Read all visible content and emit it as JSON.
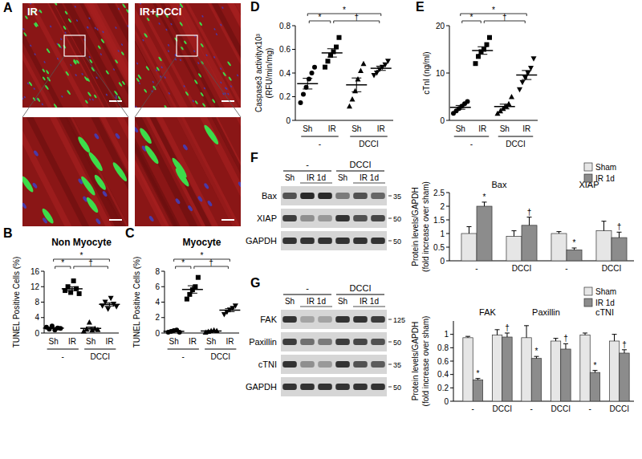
{
  "images": {
    "panel": "A",
    "labels": [
      "IR",
      "IR+DCCI"
    ]
  },
  "blots": [
    {
      "panel": "F",
      "group_labels": [
        "-",
        "DCCI"
      ],
      "lane_labels": [
        "Sh",
        "IR 1d"
      ],
      "rows": [
        {
          "label": "Bax",
          "mw": 35,
          "bands": [
            0.7,
            0.9,
            0.9,
            0.5,
            0.7,
            0.6
          ]
        },
        {
          "label": "XIAP",
          "mw": 50,
          "bands": [
            0.8,
            0.4,
            0.35,
            0.85,
            0.7,
            0.75
          ]
        },
        {
          "label": "GAPDH",
          "mw": 50,
          "bands": [
            0.85,
            0.85,
            0.85,
            0.85,
            0.85,
            0.85
          ]
        }
      ]
    },
    {
      "panel": "G",
      "group_labels": [
        "-",
        "DCCI"
      ],
      "lane_labels": [
        "Sh",
        "IR 1d"
      ],
      "rows": [
        {
          "label": "FAK",
          "mw": 125,
          "bands": [
            0.85,
            0.3,
            0.3,
            0.85,
            0.85,
            0.8
          ]
        },
        {
          "label": "Paxillin",
          "mw": 50,
          "bands": [
            0.8,
            0.55,
            0.5,
            0.8,
            0.75,
            0.7
          ]
        },
        {
          "label": "cTNI",
          "mw": 35,
          "bands": [
            0.85,
            0.4,
            0.35,
            0.85,
            0.7,
            0.65
          ]
        },
        {
          "label": "GAPDH",
          "mw": 50,
          "bands": [
            0.85,
            0.85,
            0.85,
            0.85,
            0.85,
            0.85
          ]
        }
      ]
    }
  ],
  "chart_data": [
    {
      "type": "dot",
      "panel": "B",
      "title": "Non Myocyte",
      "ylabel": [
        "TUNEL Positive Cells (%)"
      ],
      "categories": [
        "Sh",
        "IR",
        "Sh",
        "IR"
      ],
      "group_labels": [
        "-",
        "DCCI"
      ],
      "marker": [
        "circle",
        "square",
        "triangle",
        "triangle-down"
      ],
      "points": [
        [
          1.5,
          1.0,
          1.8,
          0.8,
          1.3,
          1.2
        ],
        [
          11.0,
          12.0,
          10.5,
          13.5,
          11.5,
          10.2
        ],
        [
          0.5,
          1.0,
          2.8,
          0.8,
          1.2,
          0.9
        ],
        [
          7.0,
          8.0,
          6.2,
          9.0,
          7.5,
          6.8
        ]
      ],
      "values": [
        1.27,
        11.45,
        1.2,
        7.42
      ],
      "errors": [
        0.15,
        0.5,
        0.35,
        0.42
      ],
      "ylim": [
        0,
        16
      ],
      "yticks": [
        0,
        4,
        8,
        12,
        16
      ],
      "comparisons": [
        {
          "from": 0,
          "to": 1,
          "label": "*"
        },
        {
          "from": 0,
          "to": 3,
          "label": "*"
        },
        {
          "from": 1,
          "to": 3,
          "label": "†"
        }
      ]
    },
    {
      "type": "dot",
      "panel": "C",
      "title": "Myocyte",
      "ylabel": [
        "TUNEL Positive Cells (%)"
      ],
      "categories": [
        "Sh",
        "IR",
        "Sh",
        "IR"
      ],
      "group_labels": [
        "-",
        "DCCI"
      ],
      "marker": [
        "circle",
        "square",
        "triangle",
        "triangle-down"
      ],
      "points": [
        [
          0.1,
          0.2,
          0.3,
          0.4,
          0.1
        ],
        [
          4.4,
          5.0,
          5.6,
          6.0,
          7.2
        ],
        [
          0.1,
          0.2,
          0.3,
          0.4,
          0.3
        ],
        [
          2.4,
          2.7,
          3.0,
          3.2,
          3.5
        ]
      ],
      "values": [
        0.22,
        5.64,
        0.26,
        2.96
      ],
      "errors": [
        0.06,
        0.48,
        0.05,
        0.19
      ],
      "ylim": [
        0,
        8
      ],
      "yticks": [
        0,
        2,
        4,
        6,
        8
      ],
      "comparisons": [
        {
          "from": 0,
          "to": 1,
          "label": "*"
        },
        {
          "from": 0,
          "to": 3,
          "label": "*"
        },
        {
          "from": 1,
          "to": 3,
          "label": "†"
        }
      ]
    },
    {
      "type": "dot",
      "panel": "D",
      "ylabel": [
        "Caspase3 activityx10³",
        "(RFU/min/mg)"
      ],
      "categories": [
        "Sh",
        "IR",
        "Sh",
        "IR"
      ],
      "group_labels": [
        "-",
        "DCCI"
      ],
      "marker": [
        "circle",
        "square",
        "triangle",
        "triangle-down"
      ],
      "points": [
        [
          0.15,
          0.22,
          0.28,
          0.35,
          0.4,
          0.45
        ],
        [
          0.45,
          0.5,
          0.55,
          0.58,
          0.62,
          0.7
        ],
        [
          0.12,
          0.18,
          0.25,
          0.35,
          0.42,
          0.48
        ],
        [
          0.38,
          0.4,
          0.43,
          0.45,
          0.47,
          0.5
        ]
      ],
      "values": [
        0.31,
        0.57,
        0.3,
        0.44
      ],
      "errors": [
        0.045,
        0.035,
        0.058,
        0.018
      ],
      "ylim": [
        0,
        0.8
      ],
      "yticks": [
        0,
        0.2,
        0.4,
        0.6,
        0.8
      ],
      "comparisons": [
        {
          "from": 0,
          "to": 1,
          "label": "*"
        },
        {
          "from": 0,
          "to": 3,
          "label": "*"
        },
        {
          "from": 1,
          "to": 3,
          "label": "†"
        }
      ]
    },
    {
      "type": "dot",
      "panel": "E",
      "ylabel": [
        "cTnI (ng/ml)"
      ],
      "categories": [
        "Sh",
        "IR",
        "Sh",
        "IR"
      ],
      "group_labels": [
        "-",
        "DCCI"
      ],
      "marker": [
        "circle",
        "square",
        "triangle",
        "triangle-down"
      ],
      "points": [
        [
          1.5,
          2.0,
          2.5,
          3.0,
          3.5,
          4.0
        ],
        [
          12.0,
          13.5,
          14.5,
          15.0,
          16.0,
          17.5
        ],
        [
          1.5,
          2.0,
          2.5,
          3.0,
          3.5,
          5.0
        ],
        [
          6.5,
          8.0,
          9.0,
          10.0,
          11.0,
          13.0
        ]
      ],
      "values": [
        2.75,
        14.75,
        2.92,
        9.58
      ],
      "errors": [
        0.4,
        0.8,
        0.5,
        0.95
      ],
      "ylim": [
        0,
        20
      ],
      "yticks": [
        0,
        10,
        20
      ],
      "comparisons": [
        {
          "from": 0,
          "to": 1,
          "label": "*"
        },
        {
          "from": 0,
          "to": 3,
          "label": "*"
        },
        {
          "from": 1,
          "to": 3,
          "label": "†"
        }
      ]
    },
    {
      "type": "bar",
      "ylabel": [
        "Protein levels/GAPDH",
        "(fold increase over sham)"
      ],
      "categories": [
        "-",
        "DCCI",
        "-",
        "DCCI"
      ],
      "group_labels": [
        "Bax",
        "XIAP"
      ],
      "series": [
        {
          "name": "Sham",
          "color": "#e6e6e6",
          "values": [
            1.0,
            0.9,
            1.0,
            1.1
          ],
          "errors": [
            0.25,
            0.2,
            0.07,
            0.35
          ]
        },
        {
          "name": "IR 1d",
          "color": "#8c8c8c",
          "values": [
            2.0,
            1.3,
            0.4,
            0.85
          ],
          "errors": [
            0.15,
            0.3,
            0.07,
            0.2
          ],
          "annotations": [
            "*",
            "†",
            "*",
            "†"
          ]
        }
      ],
      "ylim": [
        0,
        2.5
      ],
      "yticks": [
        0,
        0.5,
        1,
        1.5,
        2,
        2.5
      ],
      "legend": "top-right"
    },
    {
      "type": "bar",
      "ylabel": [
        "Protein levels/GAPDH",
        "(fold increase over sham)"
      ],
      "categories": [
        "-",
        "DCCI",
        "-",
        "DCCI",
        "-",
        "DCCI"
      ],
      "group_labels": [
        "FAK",
        "Paxillin",
        "cTNI"
      ],
      "series": [
        {
          "name": "Sham",
          "color": "#e6e6e6",
          "values": [
            0.95,
            0.99,
            0.95,
            0.9,
            0.99,
            0.9
          ],
          "errors": [
            0.02,
            0.08,
            0.18,
            0.04,
            0.03,
            0.1
          ]
        },
        {
          "name": "IR 1d",
          "color": "#8c8c8c",
          "values": [
            0.32,
            0.96,
            0.64,
            0.78,
            0.43,
            0.72
          ],
          "errors": [
            0.02,
            0.06,
            0.03,
            0.08,
            0.03,
            0.05
          ],
          "annotations": [
            "*",
            "†",
            "*",
            "†",
            "*",
            "†"
          ]
        }
      ],
      "ylim": [
        0,
        1.2
      ],
      "yticks": [
        0,
        0.2,
        0.4,
        0.6,
        0.8,
        1
      ],
      "legend": "top-right"
    }
  ]
}
